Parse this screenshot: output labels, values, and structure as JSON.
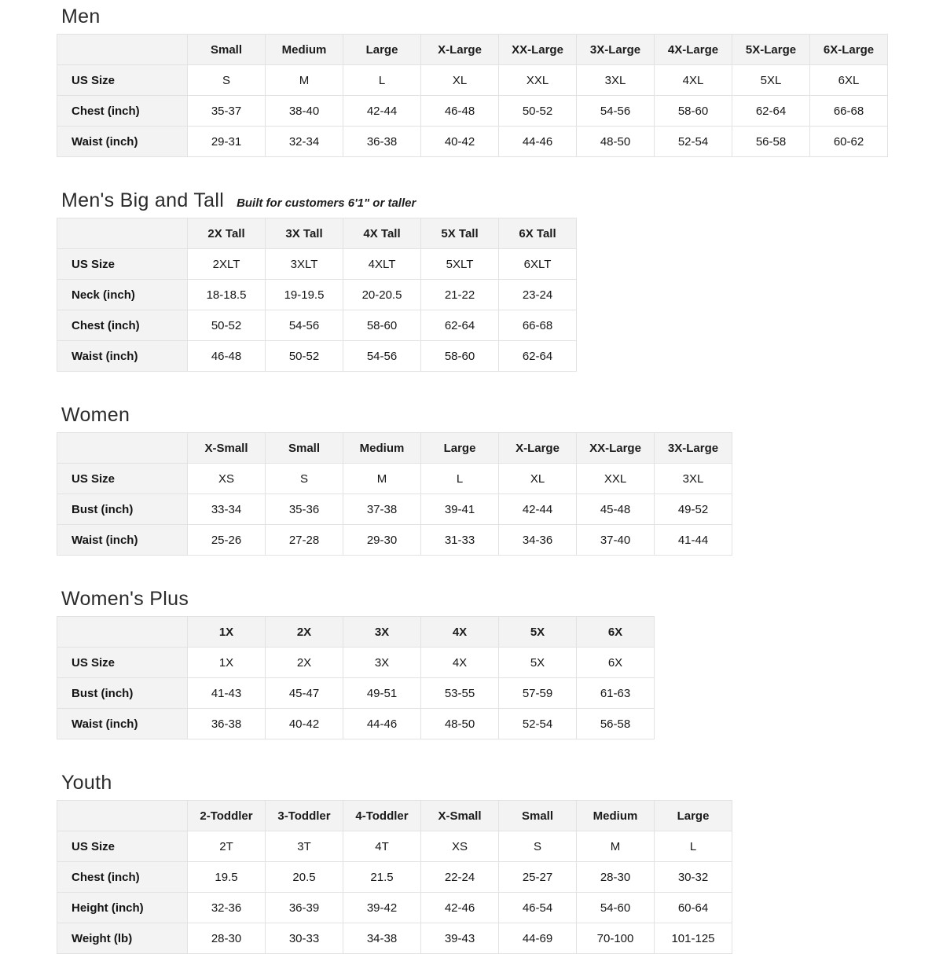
{
  "page": {
    "background": "#ffffff",
    "header_bg": "#f3f3f3",
    "border_color": "#e2e2e2",
    "text_color": "#131313"
  },
  "sections": [
    {
      "title": "Men",
      "subtitle": "",
      "columns": [
        "Small",
        "Medium",
        "Large",
        "X-Large",
        "XX-Large",
        "3X-Large",
        "4X-Large",
        "5X-Large",
        "6X-Large"
      ],
      "rows": [
        {
          "label": "US Size",
          "values": [
            "S",
            "M",
            "L",
            "XL",
            "XXL",
            "3XL",
            "4XL",
            "5XL",
            "6XL"
          ]
        },
        {
          "label": "Chest (inch)",
          "values": [
            "35-37",
            "38-40",
            "42-44",
            "46-48",
            "50-52",
            "54-56",
            "58-60",
            "62-64",
            "66-68"
          ]
        },
        {
          "label": "Waist (inch)",
          "values": [
            "29-31",
            "32-34",
            "36-38",
            "40-42",
            "44-46",
            "48-50",
            "52-54",
            "56-58",
            "60-62"
          ]
        }
      ]
    },
    {
      "title": "Men's Big and Tall",
      "subtitle": "Built for customers 6'1\" or taller",
      "columns": [
        "2X Tall",
        "3X Tall",
        "4X Tall",
        "5X Tall",
        "6X Tall"
      ],
      "rows": [
        {
          "label": "US Size",
          "values": [
            "2XLT",
            "3XLT",
            "4XLT",
            "5XLT",
            "6XLT"
          ]
        },
        {
          "label": "Neck (inch)",
          "values": [
            "18-18.5",
            "19-19.5",
            "20-20.5",
            "21-22",
            "23-24"
          ]
        },
        {
          "label": "Chest (inch)",
          "values": [
            "50-52",
            "54-56",
            "58-60",
            "62-64",
            "66-68"
          ]
        },
        {
          "label": "Waist (inch)",
          "values": [
            "46-48",
            "50-52",
            "54-56",
            "58-60",
            "62-64"
          ]
        }
      ]
    },
    {
      "title": "Women",
      "subtitle": "",
      "columns": [
        "X-Small",
        "Small",
        "Medium",
        "Large",
        "X-Large",
        "XX-Large",
        "3X-Large"
      ],
      "rows": [
        {
          "label": "US Size",
          "values": [
            "XS",
            "S",
            "M",
            "L",
            "XL",
            "XXL",
            "3XL"
          ]
        },
        {
          "label": "Bust (inch)",
          "values": [
            "33-34",
            "35-36",
            "37-38",
            "39-41",
            "42-44",
            "45-48",
            "49-52"
          ]
        },
        {
          "label": "Waist (inch)",
          "values": [
            "25-26",
            "27-28",
            "29-30",
            "31-33",
            "34-36",
            "37-40",
            "41-44"
          ]
        }
      ]
    },
    {
      "title": "Women's  Plus",
      "subtitle": "",
      "columns": [
        "1X",
        "2X",
        "3X",
        "4X",
        "5X",
        "6X"
      ],
      "rows": [
        {
          "label": "US Size",
          "values": [
            "1X",
            "2X",
            "3X",
            "4X",
            "5X",
            "6X"
          ]
        },
        {
          "label": "Bust (inch)",
          "values": [
            "41-43",
            "45-47",
            "49-51",
            "53-55",
            "57-59",
            "61-63"
          ]
        },
        {
          "label": "Waist (inch)",
          "values": [
            "36-38",
            "40-42",
            "44-46",
            "48-50",
            "52-54",
            "56-58"
          ]
        }
      ]
    },
    {
      "title": "Youth",
      "subtitle": "",
      "columns": [
        "2-Toddler",
        "3-Toddler",
        "4-Toddler",
        "X-Small",
        "Small",
        "Medium",
        "Large"
      ],
      "rows": [
        {
          "label": "US Size",
          "values": [
            "2T",
            "3T",
            "4T",
            "XS",
            "S",
            "M",
            "L"
          ]
        },
        {
          "label": "Chest (inch)",
          "values": [
            "19.5",
            "20.5",
            "21.5",
            "22-24",
            "25-27",
            "28-30",
            "30-32"
          ]
        },
        {
          "label": "Height (inch)",
          "values": [
            "32-36",
            "36-39",
            "39-42",
            "42-46",
            "46-54",
            "54-60",
            "60-64"
          ]
        },
        {
          "label": "Weight (lb)",
          "values": [
            "28-30",
            "30-33",
            "34-38",
            "39-43",
            "44-69",
            "70-100",
            "101-125"
          ]
        }
      ]
    }
  ]
}
